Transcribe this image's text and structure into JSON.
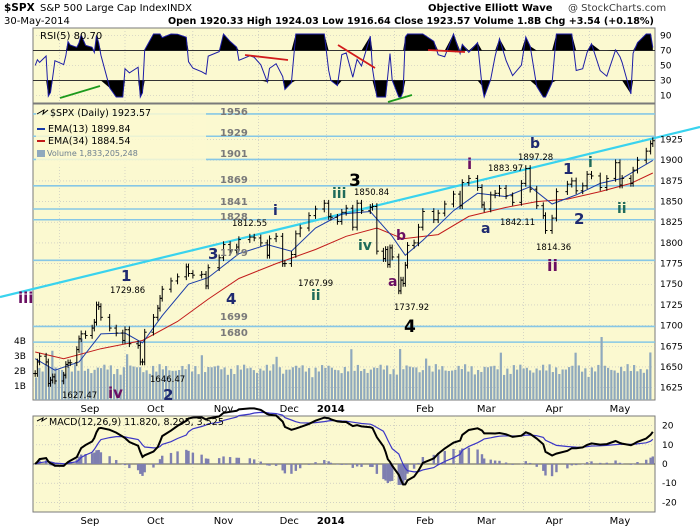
{
  "header": {
    "symbol": "$SPX",
    "name": "S&P 500 Large Cap Index",
    "exchange": "INDX",
    "brand": "Objective Elliott Wave",
    "watermark": "@ StockCharts.com",
    "date": "30-May-2014",
    "quote": "Open 1920.33   High 1924.03   Low 1916.64   Close 1923.57   Volume 1.8B   Chg +3.54 (+0.18%)"
  },
  "colors": {
    "panel_bg": "#fbf9d0",
    "grid": "#b6b6b6",
    "rsi_line": "#1c1ca6",
    "price_line": "#000000",
    "ema13": "#1a3ca8",
    "ema34": "#c21b1b",
    "trendline": "#39d3ee",
    "fib_line": "#86c7e6",
    "volume": "#8fa9bd",
    "macd_line": "#000000",
    "signal_line": "#3b36c6",
    "histogram": "#7e7fb0",
    "wave_navy": "#1f2a70",
    "wave_purple": "#6a0f62",
    "wave_teal": "#1f6b5a"
  },
  "rsi_panel": {
    "label": "RSI(5) 80.70",
    "ticks": [
      "90",
      "70",
      "50",
      "30",
      "10"
    ]
  },
  "price_panel": {
    "legend": {
      "title": "$SPX (Daily) 1923.57",
      "ema13": "EMA(13) 1899.84",
      "ema34": "EMA(34) 1884.54",
      "volume": "Volume 1,833,205,248"
    },
    "volume_ticks": [
      "4B",
      "3B",
      "2B",
      "1B"
    ],
    "fib_levels": [
      "1956",
      "1929",
      "1901",
      "1869",
      "1841",
      "1828",
      "1779",
      "1699",
      "1680"
    ],
    "annotations": {
      "wave_labels": [
        "iii",
        "iv",
        "1",
        "2",
        "3",
        "4",
        "i",
        "ii",
        "iii",
        "3",
        "iv",
        "a",
        "b",
        "4",
        "i",
        "a",
        "b",
        "ii",
        "1",
        "2",
        "i",
        "ii"
      ],
      "price_labels": [
        "1729.86",
        "1627.47",
        "1646.47",
        "1812.55",
        "1767.99",
        "1850.84",
        "1737.92",
        "1883.97",
        "1897.28",
        "1842.11",
        "1814.36"
      ]
    }
  },
  "macd_panel": {
    "label": "MACD(12,26,9) 11.820, 8.295, 3.525",
    "ticks": [
      "20",
      "10",
      "0",
      "-10",
      "-20"
    ]
  },
  "x_axis": {
    "labels": [
      "Sep",
      "Oct",
      "Nov",
      "Dec",
      "2014",
      "Feb",
      "Mar",
      "Apr",
      "May"
    ]
  },
  "chart_data": {
    "type": "line",
    "title": "$SPX S&P 500 Large Cap Index INDX",
    "xlabel": "",
    "ylabel": "",
    "price_axis": {
      "ylim": [
        1610,
        1968
      ],
      "ticks": [
        1625,
        1650,
        1675,
        1700,
        1725,
        1750,
        1775,
        1800,
        1825,
        1850,
        1875,
        1900,
        1925
      ]
    },
    "grid": true,
    "legend_position": "top-left",
    "series": [
      {
        "name": "$SPX (Daily)",
        "points": [
          [
            "2013-08-21",
            1642
          ],
          [
            "2013-08-22",
            1656
          ],
          [
            "2013-08-23",
            1663
          ],
          [
            "2013-08-26",
            1656
          ],
          [
            "2013-08-27",
            1630
          ],
          [
            "2013-08-28",
            1634
          ],
          [
            "2013-08-29",
            1638
          ],
          [
            "2013-08-30",
            1633
          ],
          [
            "2013-09-03",
            1640
          ],
          [
            "2013-09-04",
            1653
          ],
          [
            "2013-09-05",
            1655
          ],
          [
            "2013-09-06",
            1655
          ],
          [
            "2013-09-09",
            1671
          ],
          [
            "2013-09-10",
            1684
          ],
          [
            "2013-09-11",
            1690
          ],
          [
            "2013-09-13",
            1688
          ],
          [
            "2013-09-16",
            1697
          ],
          [
            "2013-09-17",
            1704
          ],
          [
            "2013-09-18",
            1725
          ],
          [
            "2013-09-19",
            1723
          ],
          [
            "2013-09-20",
            1710
          ],
          [
            "2013-09-24",
            1697
          ],
          [
            "2013-09-27",
            1691
          ],
          [
            "2013-09-30",
            1682
          ],
          [
            "2013-10-01",
            1695
          ],
          [
            "2013-10-03",
            1678
          ],
          [
            "2013-10-07",
            1676
          ],
          [
            "2013-10-08",
            1656
          ],
          [
            "2013-10-09",
            1656
          ],
          [
            "2013-10-10",
            1692
          ],
          [
            "2013-10-14",
            1710
          ],
          [
            "2013-10-16",
            1721
          ],
          [
            "2013-10-17",
            1733
          ],
          [
            "2013-10-18",
            1744
          ],
          [
            "2013-10-22",
            1754
          ],
          [
            "2013-10-25",
            1759
          ],
          [
            "2013-10-29",
            1771
          ],
          [
            "2013-10-30",
            1763
          ],
          [
            "2013-11-01",
            1761
          ],
          [
            "2013-11-05",
            1762
          ],
          [
            "2013-11-07",
            1748
          ],
          [
            "2013-11-08",
            1770
          ],
          [
            "2013-11-13",
            1782
          ],
          [
            "2013-11-15",
            1798
          ],
          [
            "2013-11-18",
            1791
          ],
          [
            "2013-11-21",
            1795
          ],
          [
            "2013-11-22",
            1804
          ],
          [
            "2013-11-27",
            1807
          ],
          [
            "2013-11-29",
            1806
          ],
          [
            "2013-12-02",
            1800
          ],
          [
            "2013-12-05",
            1785
          ],
          [
            "2013-12-06",
            1805
          ],
          [
            "2013-12-09",
            1808
          ],
          [
            "2013-12-12",
            1775
          ],
          [
            "2013-12-13",
            1775
          ],
          [
            "2013-12-16",
            1786
          ],
          [
            "2013-12-18",
            1811
          ],
          [
            "2013-12-20",
            1818
          ],
          [
            "2013-12-24",
            1833
          ],
          [
            "2013-12-27",
            1841
          ],
          [
            "2013-12-31",
            1848
          ],
          [
            "2014-01-02",
            1832
          ],
          [
            "2014-01-03",
            1831
          ],
          [
            "2014-01-06",
            1826
          ],
          [
            "2014-01-08",
            1837
          ],
          [
            "2014-01-10",
            1842
          ],
          [
            "2014-01-13",
            1819
          ],
          [
            "2014-01-15",
            1848
          ],
          [
            "2014-01-17",
            1839
          ],
          [
            "2014-01-21",
            1843
          ],
          [
            "2014-01-22",
            1844
          ],
          [
            "2014-01-24",
            1790
          ],
          [
            "2014-01-27",
            1781
          ],
          [
            "2014-01-28",
            1792
          ],
          [
            "2014-01-29",
            1774
          ],
          [
            "2014-01-30",
            1794
          ],
          [
            "2014-01-31",
            1783
          ],
          [
            "2014-02-03",
            1742
          ],
          [
            "2014-02-04",
            1755
          ],
          [
            "2014-02-05",
            1751
          ],
          [
            "2014-02-06",
            1773
          ],
          [
            "2014-02-07",
            1797
          ],
          [
            "2014-02-10",
            1800
          ],
          [
            "2014-02-12",
            1819
          ],
          [
            "2014-02-14",
            1838
          ],
          [
            "2014-02-19",
            1828
          ],
          [
            "2014-02-21",
            1836
          ],
          [
            "2014-02-24",
            1847
          ],
          [
            "2014-02-28",
            1859
          ],
          [
            "2014-03-03",
            1845
          ],
          [
            "2014-03-04",
            1873
          ],
          [
            "2014-03-07",
            1878
          ],
          [
            "2014-03-11",
            1867
          ],
          [
            "2014-03-13",
            1846
          ],
          [
            "2014-03-14",
            1841
          ],
          [
            "2014-03-17",
            1858
          ],
          [
            "2014-03-19",
            1860
          ],
          [
            "2014-03-21",
            1866
          ],
          [
            "2014-03-24",
            1857
          ],
          [
            "2014-03-27",
            1849
          ],
          [
            "2014-03-31",
            1872
          ],
          [
            "2014-04-02",
            1890
          ],
          [
            "2014-04-04",
            1865
          ],
          [
            "2014-04-07",
            1845
          ],
          [
            "2014-04-10",
            1833
          ],
          [
            "2014-04-11",
            1815
          ],
          [
            "2014-04-14",
            1830
          ],
          [
            "2014-04-16",
            1862
          ],
          [
            "2014-04-21",
            1871
          ],
          [
            "2014-04-23",
            1875
          ],
          [
            "2014-04-25",
            1863
          ],
          [
            "2014-04-28",
            1869
          ],
          [
            "2014-04-30",
            1883
          ],
          [
            "2014-05-02",
            1881
          ],
          [
            "2014-05-06",
            1867
          ],
          [
            "2014-05-09",
            1878
          ],
          [
            "2014-05-13",
            1897
          ],
          [
            "2014-05-15",
            1870
          ],
          [
            "2014-05-16",
            1878
          ],
          [
            "2014-05-20",
            1872
          ],
          [
            "2014-05-21",
            1888
          ],
          [
            "2014-05-23",
            1900
          ],
          [
            "2014-05-27",
            1911
          ],
          [
            "2014-05-29",
            1920
          ],
          [
            "2014-05-30",
            1923.57
          ]
        ]
      },
      {
        "name": "EMA(13)",
        "points": [
          [
            "2013-08-21",
            1660
          ],
          [
            "2013-08-30",
            1646
          ],
          [
            "2013-09-10",
            1656
          ],
          [
            "2013-09-20",
            1690
          ],
          [
            "2013-10-01",
            1691
          ],
          [
            "2013-10-09",
            1679
          ],
          [
            "2013-10-18",
            1712
          ],
          [
            "2013-10-30",
            1750
          ],
          [
            "2013-11-08",
            1758
          ],
          [
            "2013-11-22",
            1787
          ],
          [
            "2013-12-05",
            1798
          ],
          [
            "2013-12-16",
            1790
          ],
          [
            "2013-12-27",
            1818
          ],
          [
            "2014-01-08",
            1835
          ],
          [
            "2014-01-21",
            1838
          ],
          [
            "2014-01-31",
            1808
          ],
          [
            "2014-02-06",
            1785
          ],
          [
            "2014-02-14",
            1803
          ],
          [
            "2014-02-28",
            1839
          ],
          [
            "2014-03-11",
            1860
          ],
          [
            "2014-03-24",
            1856
          ],
          [
            "2014-04-04",
            1868
          ],
          [
            "2014-04-14",
            1847
          ],
          [
            "2014-04-25",
            1858
          ],
          [
            "2014-05-06",
            1872
          ],
          [
            "2014-05-16",
            1878
          ],
          [
            "2014-05-30",
            1899.84
          ]
        ]
      },
      {
        "name": "EMA(34)",
        "points": [
          [
            "2013-08-21",
            1668
          ],
          [
            "2013-09-03",
            1660
          ],
          [
            "2013-09-20",
            1672
          ],
          [
            "2013-10-09",
            1682
          ],
          [
            "2013-10-25",
            1705
          ],
          [
            "2013-11-08",
            1732
          ],
          [
            "2013-11-22",
            1757
          ],
          [
            "2013-12-09",
            1775
          ],
          [
            "2013-12-27",
            1792
          ],
          [
            "2014-01-10",
            1808
          ],
          [
            "2014-01-24",
            1818
          ],
          [
            "2014-02-05",
            1805
          ],
          [
            "2014-02-21",
            1810
          ],
          [
            "2014-03-07",
            1832
          ],
          [
            "2014-03-24",
            1843
          ],
          [
            "2014-04-07",
            1850
          ],
          [
            "2014-04-21",
            1853
          ],
          [
            "2014-05-06",
            1862
          ],
          [
            "2014-05-20",
            1872
          ],
          [
            "2014-05-30",
            1884.54
          ]
        ]
      }
    ]
  }
}
